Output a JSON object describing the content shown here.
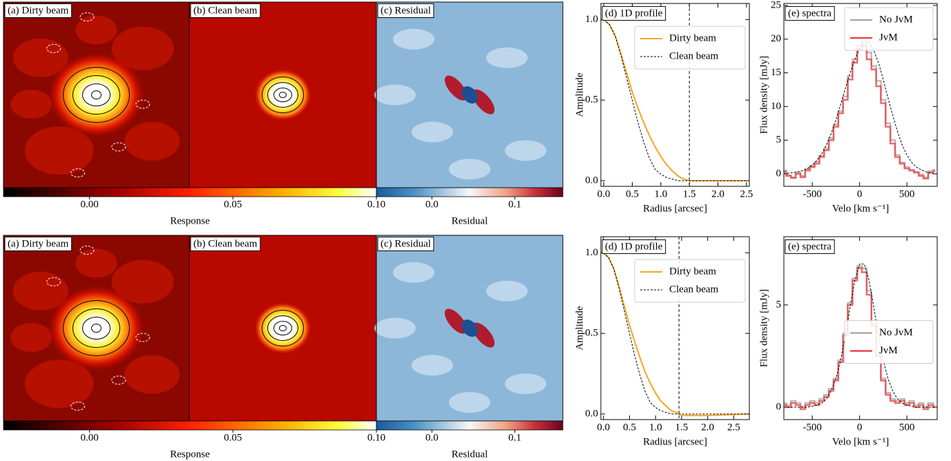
{
  "chart_data": [
    {
      "type": "image",
      "title": "(a) Dirty beam"
    },
    {
      "type": "image",
      "title": "(b) Clean beam"
    },
    {
      "type": "image",
      "title": "(c) Residual"
    },
    {
      "type": "colorbar",
      "label": "Response",
      "colormap": "hot",
      "xlim": [
        -0.03,
        0.1
      ],
      "xticks": [
        {
          "value": 0,
          "label": "0.00"
        },
        {
          "value": 0.05,
          "label": "0.05"
        },
        {
          "value": 0.1,
          "label": "0.10"
        }
      ]
    },
    {
      "type": "colorbar",
      "label": "Residual",
      "colormap": "RdBu_r",
      "xlim": [
        -0.067,
        0.158
      ],
      "xticks": [
        {
          "value": 0,
          "label": "0.0"
        },
        {
          "value": 0.1,
          "label": "0.1"
        }
      ]
    },
    {
      "type": "line",
      "title": "(d) 1D profile",
      "xlabel": "Radius [arcsec]",
      "ylabel": "Amplitude",
      "legend": "upper right",
      "x": [
        0,
        0.1,
        0.2,
        0.3,
        0.4,
        0.5,
        0.6,
        0.7,
        0.8,
        0.9,
        1.0,
        1.1,
        1.2,
        1.3,
        1.4,
        1.5,
        2.0,
        2.5
      ],
      "series": [
        {
          "name": "Dirty beam",
          "color": "#f5a623",
          "style": "solid",
          "values": [
            1.0,
            0.97,
            0.9,
            0.79,
            0.67,
            0.55,
            0.45,
            0.36,
            0.28,
            0.21,
            0.15,
            0.1,
            0.06,
            0.03,
            0.01,
            0.0,
            0.0,
            0.0
          ]
        },
        {
          "name": "Clean beam",
          "color": "#000000",
          "style": "dashed",
          "values": [
            1.0,
            0.97,
            0.9,
            0.78,
            0.64,
            0.5,
            0.36,
            0.24,
            0.14,
            0.07,
            0.04,
            0.02,
            0.01,
            0.0,
            0.0,
            0.0,
            0.0,
            0.0
          ]
        }
      ],
      "vline": 1.5,
      "xlim": [
        -0.05,
        2.55
      ],
      "ylim": [
        -0.035,
        1.1
      ],
      "xticks": [
        {
          "value": 0,
          "label": "0.0"
        },
        {
          "value": 0.5,
          "label": "0.5"
        },
        {
          "value": 1,
          "label": "1.0"
        },
        {
          "value": 1.5,
          "label": "1.5"
        },
        {
          "value": 2,
          "label": "2.0"
        },
        {
          "value": 2.5,
          "label": "2.5"
        }
      ],
      "yticks": [
        {
          "value": 0,
          "label": "0.0"
        },
        {
          "value": 0.5,
          "label": "0.5"
        },
        {
          "value": 1,
          "label": "1.0"
        }
      ]
    },
    {
      "type": "line",
      "title": "(e) spectra",
      "xlabel": "Velo [km s⁻¹]",
      "ylabel": "Flux density [mJy]",
      "legend": "upper right",
      "x": [
        -800,
        -750,
        -700,
        -650,
        -600,
        -550,
        -500,
        -450,
        -400,
        -350,
        -300,
        -250,
        -200,
        -150,
        -100,
        -50,
        0,
        50,
        100,
        150,
        200,
        250,
        300,
        350,
        400,
        450,
        500,
        550,
        600,
        650,
        700,
        750,
        800
      ],
      "series": [
        {
          "name": "No JvM",
          "color": "#aaaaaa",
          "style": "steps",
          "values": [
            0.5,
            -0.2,
            -0.5,
            0.2,
            -0.3,
            0.7,
            1.2,
            1.8,
            2.7,
            3.8,
            5.3,
            7.3,
            9.3,
            11.5,
            14.5,
            17,
            19,
            19.8,
            18,
            16,
            13.8,
            11,
            7.5,
            5,
            2.8,
            1.7,
            1.0,
            0.6,
            0.3,
            -0.1,
            -0.5,
            0.4,
            0.6
          ]
        },
        {
          "name": "JvM",
          "color": "#e8474b",
          "style": "steps",
          "values": [
            0.3,
            -0.3,
            -0.6,
            0,
            -0.5,
            0.5,
            1.0,
            1.5,
            2.5,
            3.5,
            5,
            7,
            9,
            11,
            14,
            16.5,
            18.5,
            19,
            17,
            15.5,
            13,
            10.5,
            7,
            4.5,
            2.5,
            1.5,
            0.8,
            0.5,
            0.2,
            -0.3,
            -0.7,
            0.2,
            0.4
          ]
        },
        {
          "color": "#000000",
          "style": "dashed",
          "values": [
            0,
            0.1,
            0.2,
            0.3,
            0.5,
            0.8,
            1.3,
            2,
            3,
            4.3,
            6,
            8,
            10.3,
            12.7,
            15,
            17,
            18.6,
            19.5,
            19.5,
            18.3,
            16.5,
            14,
            11.3,
            8.7,
            6.3,
            4.3,
            2.8,
            1.7,
            1,
            0.6,
            0.3,
            0.1,
            0
          ]
        }
      ],
      "xlim": [
        -800,
        820
      ],
      "ylim": [
        -1.85,
        25.3
      ],
      "xticks": [
        -500,
        0,
        500
      ],
      "yticks": [
        0,
        5,
        10,
        15,
        20,
        25
      ]
    },
    {
      "type": "image",
      "title": "(a) Dirty beam"
    },
    {
      "type": "image",
      "title": "(b) Clean beam"
    },
    {
      "type": "image",
      "title": "(c) Residual"
    },
    {
      "type": "colorbar",
      "label": "Response",
      "colormap": "hot",
      "xlim": [
        -0.03,
        0.1
      ],
      "xticks": [
        {
          "value": 0,
          "label": "0.00"
        },
        {
          "value": 0.05,
          "label": "0.05"
        },
        {
          "value": 0.1,
          "label": "0.10"
        }
      ]
    },
    {
      "type": "colorbar",
      "label": "Residual",
      "colormap": "RdBu_r",
      "xlim": [
        -0.067,
        0.158
      ],
      "xticks": [
        {
          "value": 0,
          "label": "0.0"
        },
        {
          "value": 0.1,
          "label": "0.1"
        }
      ]
    },
    {
      "type": "line",
      "title": "(d) 1D profile",
      "xlabel": "Radius [arcsec]",
      "ylabel": "Amplitude",
      "legend": "upper right",
      "x": [
        0,
        0.1,
        0.2,
        0.3,
        0.4,
        0.5,
        0.6,
        0.7,
        0.8,
        0.9,
        1.0,
        1.1,
        1.2,
        1.3,
        1.4,
        1.5,
        2.0,
        2.8
      ],
      "series": [
        {
          "name": "Dirty beam",
          "color": "#f5a623",
          "style": "solid",
          "values": [
            1.0,
            0.97,
            0.9,
            0.79,
            0.67,
            0.55,
            0.45,
            0.35,
            0.26,
            0.19,
            0.13,
            0.08,
            0.05,
            0.02,
            0.01,
            -0.01,
            -0.01,
            0.0
          ]
        },
        {
          "name": "Clean beam",
          "color": "#000000",
          "style": "dashed",
          "values": [
            1.0,
            0.97,
            0.9,
            0.78,
            0.64,
            0.5,
            0.36,
            0.24,
            0.14,
            0.07,
            0.04,
            0.02,
            0.01,
            0.0,
            0.0,
            0.0,
            0.0,
            0.0
          ]
        }
      ],
      "vline": 1.45,
      "xlim": [
        -0.05,
        2.8
      ],
      "ylim": [
        -0.035,
        1.1
      ],
      "xticks": [
        {
          "value": 0,
          "label": "0.0"
        },
        {
          "value": 0.5,
          "label": "0.5"
        },
        {
          "value": 1,
          "label": "1.0"
        },
        {
          "value": 1.5,
          "label": "1.5"
        },
        {
          "value": 2,
          "label": "2.0"
        },
        {
          "value": 2.5,
          "label": "2.5"
        }
      ],
      "yticks": [
        {
          "value": 0,
          "label": "0.0"
        },
        {
          "value": 0.5,
          "label": "0.5"
        },
        {
          "value": 1,
          "label": "1.0"
        }
      ]
    },
    {
      "type": "line",
      "title": "(e) spectra",
      "xlabel": "Velo [km s⁻¹]",
      "ylabel": "Flux density [mJy]",
      "legend": "center right",
      "x": [
        -800,
        -750,
        -700,
        -650,
        -600,
        -550,
        -500,
        -450,
        -400,
        -350,
        -300,
        -250,
        -200,
        -150,
        -100,
        -50,
        0,
        50,
        100,
        150,
        200,
        250,
        300,
        350,
        400,
        450,
        500,
        550,
        600,
        650,
        700,
        750,
        800
      ],
      "series": [
        {
          "name": "No JvM",
          "color": "#aaaaaa",
          "style": "steps",
          "values": [
            0.2,
            0.1,
            0.3,
            0.2,
            0,
            0.2,
            0.3,
            0.2,
            0.4,
            0.6,
            0.9,
            1.4,
            2.3,
            3.6,
            5.1,
            6.3,
            6.9,
            6.8,
            5.7,
            4.1,
            2.6,
            1.4,
            0.7,
            0.4,
            0.3,
            0.4,
            0.2,
            0.3,
            0.1,
            0.2,
            0,
            0.2,
            0.1
          ]
        },
        {
          "name": "JvM",
          "color": "#e8474b",
          "style": "steps",
          "values": [
            0.1,
            0,
            0.2,
            0.1,
            -0.1,
            0.1,
            0.2,
            0.1,
            0.3,
            0.5,
            0.8,
            1.3,
            2.2,
            3.5,
            5,
            6.2,
            6.8,
            6.6,
            5.5,
            4,
            2.5,
            1.3,
            0.6,
            0.3,
            0.2,
            0.3,
            0.1,
            0.2,
            0,
            0.1,
            -0.1,
            0.1,
            0
          ]
        },
        {
          "color": "#000000",
          "style": "dashed",
          "values": [
            0,
            0,
            0,
            0,
            0,
            0,
            0.05,
            0.1,
            0.2,
            0.4,
            0.8,
            1.4,
            2.3,
            3.5,
            4.9,
            6.2,
            7,
            7,
            6.2,
            4.9,
            3.5,
            2.3,
            1.4,
            0.8,
            0.4,
            0.2,
            0.1,
            0.05,
            0,
            0,
            0,
            0,
            0
          ]
        }
      ],
      "xlim": [
        -800,
        820
      ],
      "ylim": [
        -0.61,
        8.34
      ],
      "xticks": [
        -500,
        0,
        500
      ],
      "yticks": [
        0,
        5
      ]
    }
  ]
}
